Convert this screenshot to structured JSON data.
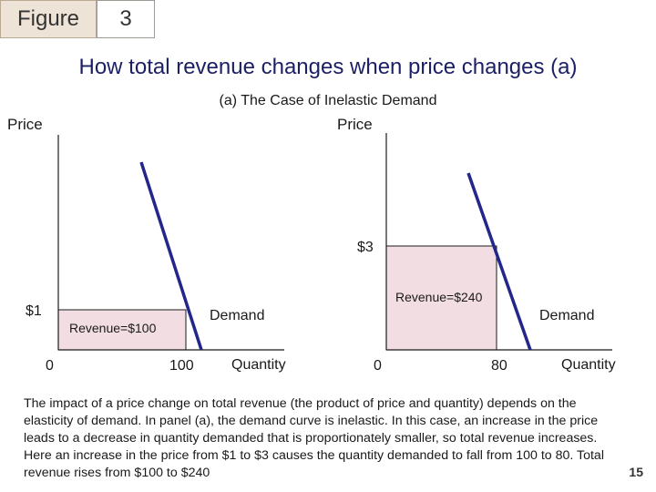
{
  "header": {
    "figure_label": "Figure",
    "figure_number": "3"
  },
  "title": "How total revenue changes when price changes (a)",
  "subtitle": "(a) The Case of Inelastic Demand",
  "panels": [
    {
      "y_axis_label": "Price",
      "x_axis_label": "Quantity",
      "origin_label": "0",
      "price_label": "$1",
      "quantity_label": "100",
      "curve_label": "Demand",
      "revenue_label": "Revenue=$100"
    },
    {
      "y_axis_label": "Price",
      "x_axis_label": "Quantity",
      "origin_label": "0",
      "price_label": "$3",
      "quantity_label": "80",
      "curve_label": "Demand",
      "revenue_label": "Revenue=$240"
    }
  ],
  "caption": "The impact of a price change on total revenue (the product of price and quantity) depends on the elasticity of demand. In panel (a), the demand curve is inelastic. In this case, an increase in the price leads to a decrease in quantity demanded that is proportionately smaller, so total revenue increases. Here an increase in the price from $1 to $3 causes the quantity demanded to fall from 100 to 80. Total revenue rises from $100 to $240",
  "page_number": "15",
  "colors": {
    "revenue_fill": "#f2dde2",
    "curve": "#23268a",
    "title": "#1b1f66",
    "axis": "#1a1a1a"
  }
}
